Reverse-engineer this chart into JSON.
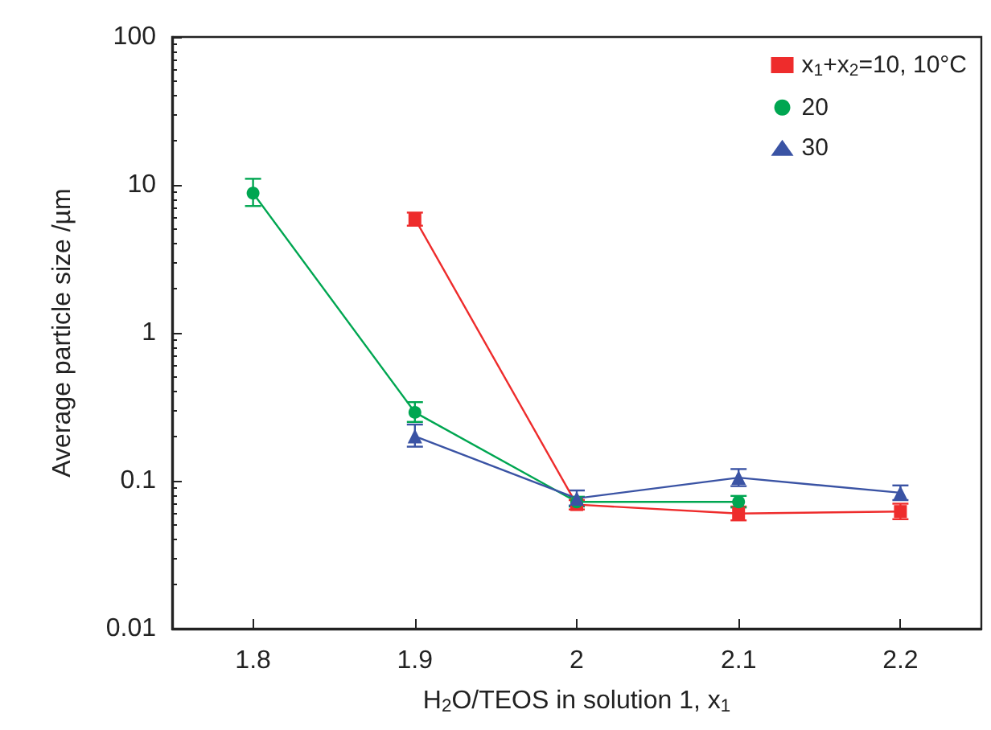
{
  "chart_data": {
    "type": "line",
    "xlabel": "H$_{2}$O/TEOS in solution 1, x$_{1}$",
    "ylabel": "Average particle size /µm",
    "series": [
      {
        "name": "x$_{1}$+x$_{2}$=10, 10°C",
        "color": "#ee2c2c",
        "marker": "square",
        "x": [
          1.9,
          2.0,
          2.1,
          2.2
        ],
        "values": [
          5.9,
          0.069,
          0.06,
          0.062
        ],
        "errors": [
          [
            5.3,
            6.5
          ],
          [
            0.064,
            0.074
          ],
          [
            0.054,
            0.067
          ],
          [
            0.055,
            0.07
          ]
        ]
      },
      {
        "name": "20",
        "color": "#00a651",
        "marker": "circle",
        "x": [
          1.8,
          1.9,
          2.0,
          2.1
        ],
        "values": [
          8.8,
          0.29,
          0.072,
          0.072
        ],
        "errors": [
          [
            7.2,
            11
          ],
          [
            0.25,
            0.34
          ],
          [
            0.067,
            0.078
          ],
          [
            0.066,
            0.079
          ]
        ]
      },
      {
        "name": "30",
        "color": "#3a53a4",
        "marker": "triangle",
        "x": [
          1.9,
          2.0,
          2.1,
          2.2
        ],
        "values": [
          0.2,
          0.076,
          0.105,
          0.083
        ],
        "errors": [
          [
            0.17,
            0.24
          ],
          [
            0.068,
            0.086
          ],
          [
            0.092,
            0.12
          ],
          [
            0.074,
            0.093
          ]
        ]
      }
    ],
    "xlim": [
      1.75,
      2.25
    ],
    "xticks": [
      1.8,
      1.9,
      2,
      2.1,
      2.2
    ],
    "ylim": [
      0.01,
      100
    ],
    "yticks": [
      0.01,
      0.1,
      1,
      10,
      100
    ],
    "log": "y",
    "grid": false,
    "legend": "top right",
    "line_style": "solid"
  }
}
